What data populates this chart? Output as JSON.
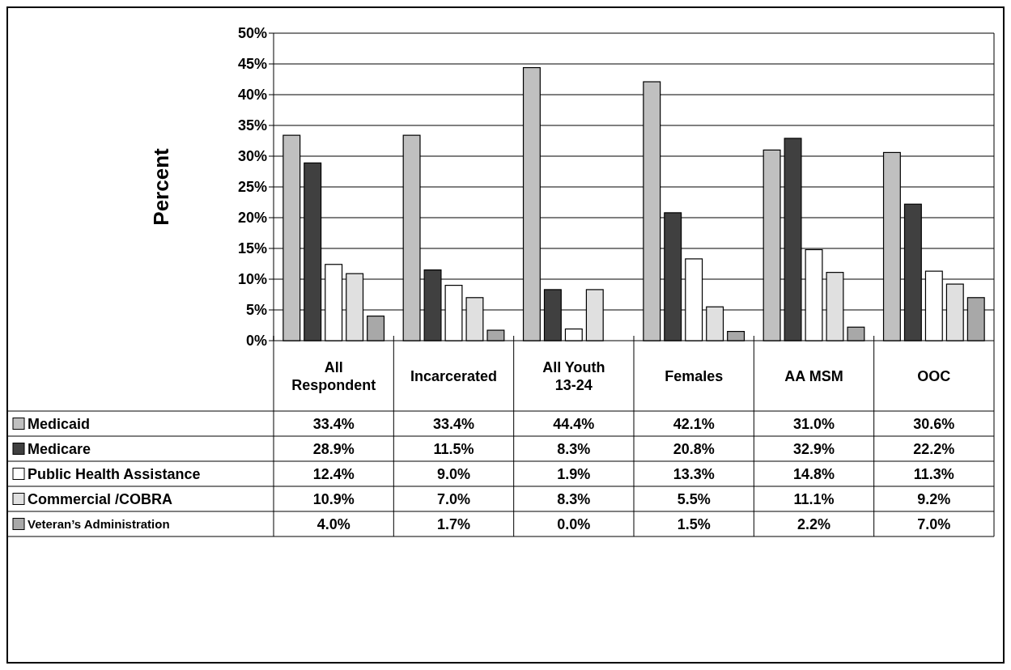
{
  "chart_data": {
    "type": "bar",
    "ylabel": "Percent",
    "categories": [
      "All Respondent",
      "Incarcerated",
      "All Youth 13-24",
      "Females",
      "AA MSM",
      "OOC"
    ],
    "series": [
      {
        "name": "Medicaid",
        "color": "#c0c0c0",
        "values": [
          33.4,
          33.4,
          44.4,
          42.1,
          31.0,
          30.6
        ],
        "value_labels": [
          "33.4%",
          "33.4%",
          "44.4%",
          "42.1%",
          "31.0%",
          "30.6%"
        ]
      },
      {
        "name": "Medicare",
        "color": "#404040",
        "values": [
          28.9,
          11.5,
          8.3,
          20.8,
          32.9,
          22.2
        ],
        "value_labels": [
          "28.9%",
          "11.5%",
          "8.3%",
          "20.8%",
          "32.9%",
          "22.2%"
        ]
      },
      {
        "name": "Public Health Assistance",
        "color": "#ffffff",
        "values": [
          12.4,
          9.0,
          1.9,
          13.3,
          14.8,
          11.3
        ],
        "value_labels": [
          "12.4%",
          "9.0%",
          "1.9%",
          "13.3%",
          "14.8%",
          "11.3%"
        ]
      },
      {
        "name": "Commercial /COBRA",
        "color": "#e0e0e0",
        "values": [
          10.9,
          7.0,
          8.3,
          5.5,
          11.1,
          9.2
        ],
        "value_labels": [
          "10.9%",
          "7.0%",
          "8.3%",
          "5.5%",
          "11.1%",
          "9.2%"
        ]
      },
      {
        "name": "Veteran’s Administration",
        "color": "#a8a8a8",
        "values": [
          4.0,
          1.7,
          0.0,
          1.5,
          2.2,
          7.0
        ],
        "value_labels": [
          "4.0%",
          "1.7%",
          "0.0%",
          "1.5%",
          "2.2%",
          "7.0%"
        ]
      }
    ],
    "ylim": [
      0,
      50
    ],
    "yticks": [
      {
        "value": 0,
        "label": "0%"
      },
      {
        "value": 5,
        "label": "5%"
      },
      {
        "value": 10,
        "label": "10%"
      },
      {
        "value": 15,
        "label": "15%"
      },
      {
        "value": 20,
        "label": "20%"
      },
      {
        "value": 25,
        "label": "25%"
      },
      {
        "value": 30,
        "label": "30%"
      },
      {
        "value": 35,
        "label": "35%"
      },
      {
        "value": 40,
        "label": "40%"
      },
      {
        "value": 45,
        "label": "45%"
      },
      {
        "value": 50,
        "label": "50%"
      }
    ],
    "grid": "y",
    "legend": "bottom"
  }
}
